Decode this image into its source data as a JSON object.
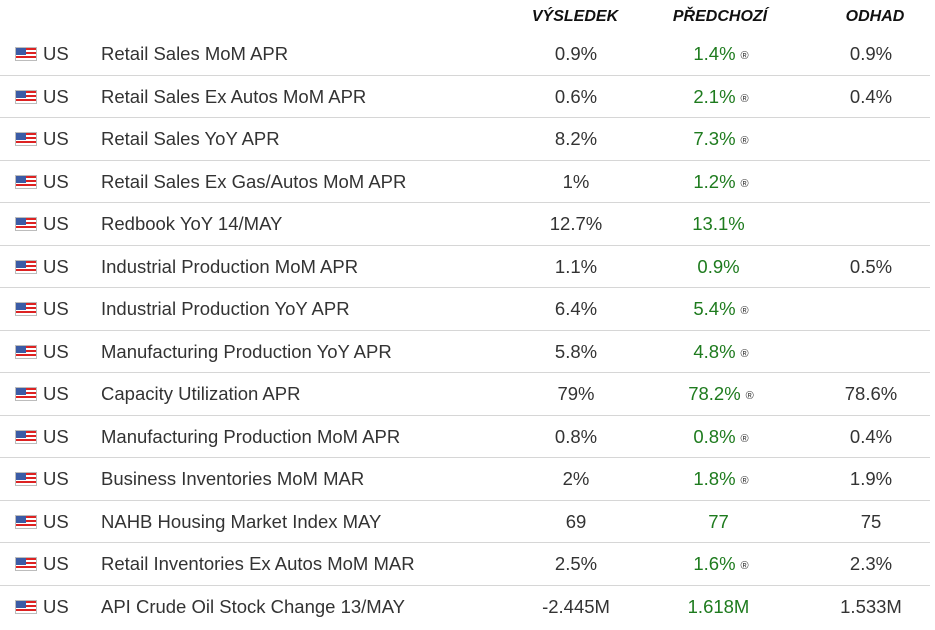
{
  "headers": {
    "actual": "VÝSLEDEK",
    "previous": "PŘEDCHOZÍ",
    "estimate": "ODHAD"
  },
  "colors": {
    "previous_text": "#1e7b1e",
    "row_divider": "#d6d6d6"
  },
  "icons": {
    "flag": "us-flag-icon",
    "revised": "registered-mark"
  },
  "rows": [
    {
      "country": "US",
      "name": "Retail Sales MoM APR",
      "actual": "0.9%",
      "previous": "1.4%",
      "revised": "®",
      "estimate": "0.9%"
    },
    {
      "country": "US",
      "name": "Retail Sales Ex Autos MoM APR",
      "actual": "0.6%",
      "previous": "2.1%",
      "revised": "®",
      "estimate": "0.4%"
    },
    {
      "country": "US",
      "name": "Retail Sales YoY APR",
      "actual": "8.2%",
      "previous": "7.3%",
      "revised": "®",
      "estimate": ""
    },
    {
      "country": "US",
      "name": "Retail Sales Ex Gas/Autos MoM APR",
      "actual": "1%",
      "previous": "1.2%",
      "revised": "®",
      "estimate": ""
    },
    {
      "country": "US",
      "name": "Redbook YoY 14/MAY",
      "actual": "12.7%",
      "previous": "13.1%",
      "revised": "",
      "estimate": ""
    },
    {
      "country": "US",
      "name": "Industrial Production MoM APR",
      "actual": "1.1%",
      "previous": "0.9%",
      "revised": "",
      "estimate": "0.5%"
    },
    {
      "country": "US",
      "name": "Industrial Production YoY APR",
      "actual": "6.4%",
      "previous": "5.4%",
      "revised": "®",
      "estimate": ""
    },
    {
      "country": "US",
      "name": "Manufacturing Production YoY APR",
      "actual": "5.8%",
      "previous": "4.8%",
      "revised": "®",
      "estimate": ""
    },
    {
      "country": "US",
      "name": "Capacity Utilization APR",
      "actual": "79%",
      "previous": "78.2%",
      "revised": "®",
      "estimate": "78.6%"
    },
    {
      "country": "US",
      "name": "Manufacturing Production MoM APR",
      "actual": "0.8%",
      "previous": "0.8%",
      "revised": "®",
      "estimate": "0.4%"
    },
    {
      "country": "US",
      "name": "Business Inventories MoM MAR",
      "actual": "2%",
      "previous": "1.8%",
      "revised": "®",
      "estimate": "1.9%"
    },
    {
      "country": "US",
      "name": "NAHB Housing Market Index MAY",
      "actual": "69",
      "previous": "77",
      "revised": "",
      "estimate": "75"
    },
    {
      "country": "US",
      "name": "Retail Inventories Ex Autos MoM MAR",
      "actual": "2.5%",
      "previous": "1.6%",
      "revised": "®",
      "estimate": "2.3%"
    },
    {
      "country": "US",
      "name": "API Crude Oil Stock Change 13/MAY",
      "actual": "-2.445M",
      "previous": "1.618M",
      "revised": "",
      "estimate": "1.533M"
    }
  ]
}
